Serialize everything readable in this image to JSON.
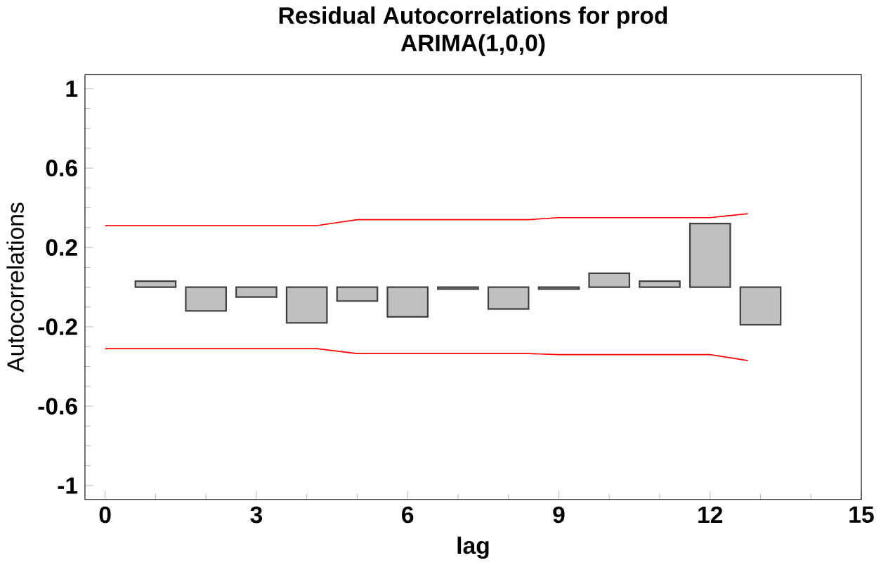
{
  "chart_data": {
    "type": "bar",
    "title": "Residual Autocorrelations for prod",
    "subtitle": "ARIMA(1,0,0)",
    "xlabel": "lag",
    "ylabel": "Autocorrelations",
    "x": [
      1,
      2,
      3,
      4,
      5,
      6,
      7,
      8,
      9,
      10,
      11,
      12,
      13
    ],
    "series": [
      {
        "color": "#c0c0c0",
        "values": [
          0.03,
          -0.12,
          -0.05,
          -0.18,
          -0.07,
          -0.15,
          -0.01,
          -0.11,
          -0.01,
          0.07,
          0.03,
          0.32,
          -0.19
        ]
      },
      {
        "type": "line",
        "color": "#ff0000",
        "x": [
          0,
          4.2,
          5,
          8.4,
          9,
          12,
          12.75
        ],
        "values": [
          0.31,
          0.31,
          0.34,
          0.34,
          0.35,
          0.35,
          0.37
        ]
      },
      {
        "type": "line",
        "color": "#ff0000",
        "x": [
          0,
          4.2,
          5,
          8.4,
          9,
          12,
          12.75
        ],
        "values": [
          -0.31,
          -0.31,
          -0.335,
          -0.335,
          -0.34,
          -0.34,
          -0.37
        ]
      }
    ],
    "xlim": [
      -0.4,
      15
    ],
    "ylim": [
      -1.07,
      1.07
    ],
    "xticks": [
      0,
      3,
      6,
      9,
      12,
      15
    ],
    "yticks": [
      -1,
      -0.6,
      -0.2,
      0.2,
      0.6,
      1
    ],
    "grid": false,
    "marker": "none",
    "line_style": "solid"
  }
}
